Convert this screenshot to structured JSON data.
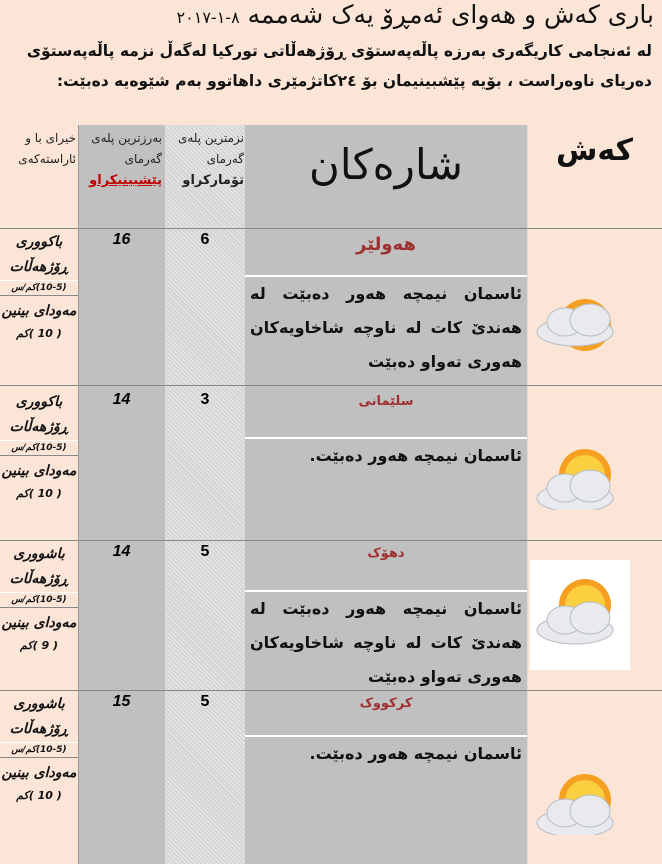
{
  "title": {
    "text": "باری کەش و هەوای ئەمڕۆ یەک شەممە",
    "date": "٨-١-٢٠١٧"
  },
  "intro": "لە ئەنجامی کاریگەری بەرزە پاڵەپەستۆی ڕۆژهەڵاتی تورکیا لەگەڵ نزمە پاڵەپەستۆی دەریای ناوەراست ، بۆیە پێشبینیمان بۆ ٢٤کاتژمێری داهاتوو بەم شێوەیە دەبێت:",
  "header": {
    "wind": "خیرای با و ئاراستەکەی",
    "max_line1": "بەرزترین پلەی گەرمای",
    "max_line2": "پێشبینیکراو",
    "min_line1": "نزمترین پلەی گەرمای",
    "min_line2": "تۆمارکراو",
    "cities": "شارەکان",
    "weather": "کەش"
  },
  "colors": {
    "background": "#fbe5d6",
    "column_gray": "#c0c0c0",
    "city_red": "#a03030",
    "forecast_red": "#c00000"
  },
  "rows": [
    {
      "city": "هەولێر",
      "max": "16",
      "min": "6",
      "desc": "ئاسمان نیمچە هەور دەبێت لە هەندێ کات لە ناوچە شاخاویەکان هەوری تەواو دەبێت",
      "wind_dir": "باکووری ڕۆژهەڵات",
      "wind_speed": "(10-5)کم/س",
      "vis_label": "مەودای بینین",
      "vis": "( 10 )کم",
      "icon": "sun-behind-cloud-icon"
    },
    {
      "city": "سلێمانی",
      "max": "14",
      "min": "3",
      "desc": "ئاسمان نیمچە هەور دەبێت.",
      "wind_dir": "باکووری ڕۆژهەڵات",
      "wind_speed": "(10-5)کم/س",
      "vis_label": "مەودای بینین",
      "vis": "( 10 )کم",
      "icon": "sun-with-cloud-icon"
    },
    {
      "city": "دهۆک",
      "max": "14",
      "min": "5",
      "desc": "ئاسمان نیمچە هەور دەبێت لە هەندێ کات لە ناوچە شاخاویەکان هەوری تەواو دەبێت",
      "wind_dir": "باشووری ڕۆژهەڵات",
      "wind_speed": "(10-5)کم/س",
      "vis_label": "مەودای بینین",
      "vis": "( 9 )کم",
      "icon": "cloud-over-sun-icon"
    },
    {
      "city": "کرکووک",
      "max": "15",
      "min": "5",
      "desc": "ئاسمان نیمچە هەور دەبێت.",
      "wind_dir": "باشووری ڕۆژهەڵات",
      "wind_speed": "(10-5)کم/س",
      "vis_label": "مەودای بینین",
      "vis": "( 10 )کم",
      "icon": "sun-with-cloud-icon"
    }
  ]
}
